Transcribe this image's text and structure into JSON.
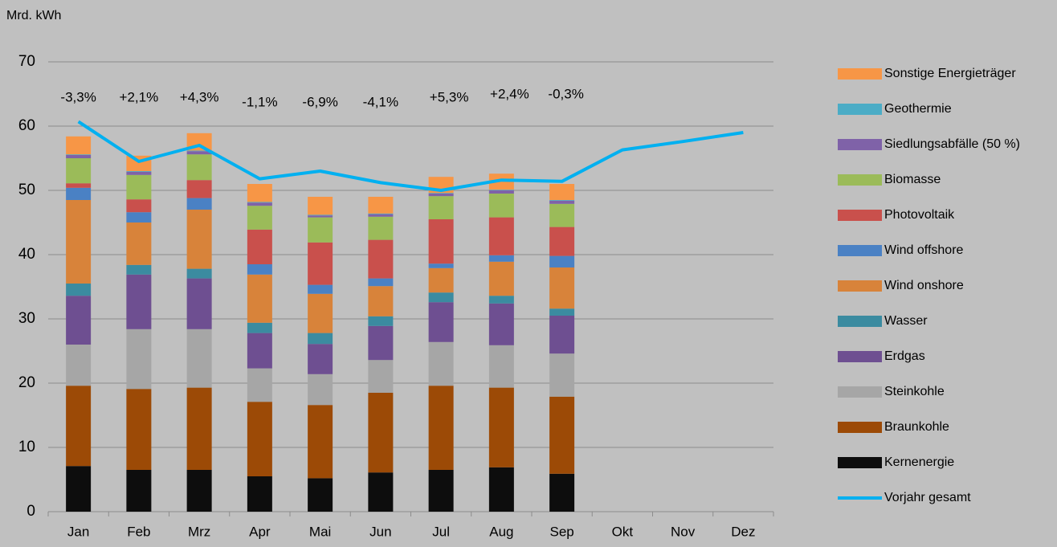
{
  "chart_data": {
    "type": "bar",
    "stacked": true,
    "y_axis_label": "Mrd. kWh",
    "categories": [
      "Jan",
      "Feb",
      "Mrz",
      "Apr",
      "Mai",
      "Jun",
      "Jul",
      "Aug",
      "Sep",
      "Okt",
      "Nov",
      "Dez"
    ],
    "ylim": [
      0,
      70
    ],
    "yticks": [
      0,
      10,
      20,
      30,
      40,
      50,
      60,
      70
    ],
    "grid": true,
    "legend": "right",
    "series": [
      {
        "name": "Kernenergie",
        "color": "#0d0d0d",
        "values": [
          7.1,
          6.5,
          6.5,
          5.5,
          5.2,
          6.1,
          6.5,
          6.9,
          5.9,
          null,
          null,
          null
        ]
      },
      {
        "name": "Braunkohle",
        "color": "#9c4a06",
        "values": [
          12.5,
          12.6,
          12.8,
          11.6,
          11.4,
          12.4,
          13.1,
          12.4,
          12.0,
          null,
          null,
          null
        ]
      },
      {
        "name": "Steinkohle",
        "color": "#a6a6a6",
        "values": [
          6.4,
          9.3,
          9.1,
          5.2,
          4.8,
          5.1,
          6.8,
          6.6,
          6.7,
          null,
          null,
          null
        ]
      },
      {
        "name": "Erdgas",
        "color": "#6e4f91",
        "values": [
          7.6,
          8.5,
          7.9,
          5.5,
          4.7,
          5.3,
          6.2,
          6.5,
          5.9,
          null,
          null,
          null
        ]
      },
      {
        "name": "Wasser",
        "color": "#3b8ba0",
        "values": [
          1.9,
          1.5,
          1.5,
          1.6,
          1.7,
          1.5,
          1.5,
          1.2,
          1.1,
          null,
          null,
          null
        ]
      },
      {
        "name": "Wind onshore",
        "color": "#d8833a",
        "values": [
          13.0,
          6.6,
          9.2,
          7.5,
          6.1,
          4.7,
          3.8,
          5.3,
          6.4,
          null,
          null,
          null
        ]
      },
      {
        "name": "Wind offshore",
        "color": "#4a81c4",
        "values": [
          1.9,
          1.6,
          1.8,
          1.6,
          1.4,
          1.2,
          0.7,
          1.0,
          1.8,
          null,
          null,
          null
        ]
      },
      {
        "name": "Photovoltaik",
        "color": "#c9504c",
        "values": [
          0.7,
          2.0,
          2.8,
          5.4,
          6.6,
          6.0,
          6.9,
          5.9,
          4.5,
          null,
          null,
          null
        ]
      },
      {
        "name": "Biomasse",
        "color": "#9bbb59",
        "values": [
          3.9,
          3.8,
          4.0,
          3.7,
          3.9,
          3.6,
          3.6,
          3.7,
          3.6,
          null,
          null,
          null
        ]
      },
      {
        "name": "Siedlungsabfälle (50 %)",
        "color": "#7f62a8",
        "values": [
          0.5,
          0.5,
          0.5,
          0.5,
          0.3,
          0.4,
          0.4,
          0.5,
          0.5,
          null,
          null,
          null
        ]
      },
      {
        "name": "Geothermie",
        "color": "#4bacc6",
        "values": [
          0.1,
          0.1,
          0.1,
          0.1,
          0.1,
          0.1,
          0.1,
          0.1,
          0.1,
          null,
          null,
          null
        ]
      },
      {
        "name": "Sonstige Energieträger",
        "color": "#f79646",
        "values": [
          2.8,
          2.4,
          2.7,
          2.8,
          2.8,
          2.6,
          2.5,
          2.5,
          2.5,
          null,
          null,
          null
        ]
      },
      {
        "name": "Vorjahr gesamt",
        "type": "line",
        "color": "#00b0f0",
        "values": [
          60.7,
          54.5,
          57.0,
          51.8,
          53.0,
          51.2,
          50.0,
          51.6,
          51.4,
          56.3,
          57.6,
          59.0
        ]
      }
    ],
    "change_labels": [
      "-3,3%",
      "+2,1%",
      "+4,3%",
      "-1,1%",
      "-6,9%",
      "-4,1%",
      "+5,3%",
      "+2,4%",
      "-0,3%",
      null,
      null,
      null
    ]
  }
}
